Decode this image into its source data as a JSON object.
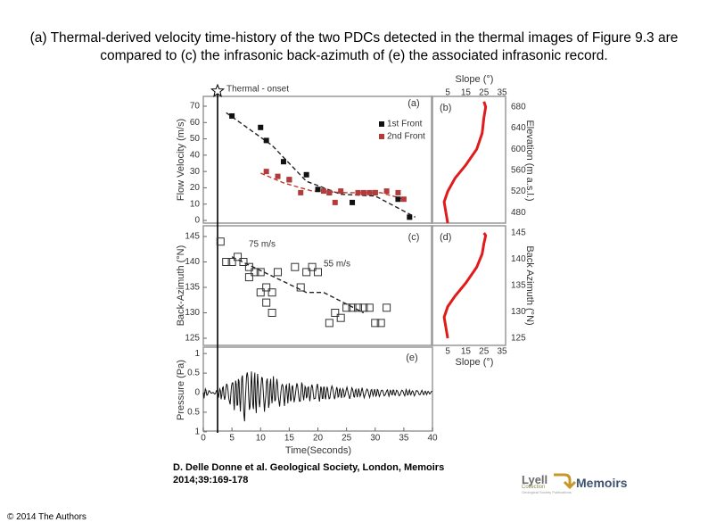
{
  "caption": {
    "text": "(a) Thermal-derived velocity time-history of the two PDCs detected in the thermal images of Figure 9.3 are compared to (c) the infrasonic back-azimuth of (e) the associated infrasonic record."
  },
  "citation": {
    "line1": "D. Delle Donne et al. Geological Society, London, Memoirs",
    "line2": "2014;39:169-178"
  },
  "copyright": "© 2014 The Authors",
  "logos": {
    "lyell_name": "Lyell",
    "lyell_sub": "Collection",
    "lyell_tag": "Geological Society Publications",
    "memoirs": "Memoirs",
    "lyell_color": "#6b6b6b",
    "arrow_color": "#c8962a",
    "memoirs_color": "#3d5370"
  },
  "chart_data": [
    {
      "panel": "(a)",
      "type": "scatter",
      "ylabel": "Flow Velocity (m/s)",
      "ylim": [
        0,
        70
      ],
      "yticks": [
        "0",
        "10",
        "20",
        "30",
        "40",
        "50",
        "60",
        "70"
      ],
      "xlim": [
        0,
        40
      ],
      "onset_label": "Thermal - onset",
      "legend": [
        "1st Front",
        "2nd Front"
      ],
      "series": [
        {
          "name": "1st Front",
          "color": "#111111",
          "x": [
            5,
            10,
            11,
            14,
            15,
            18,
            20,
            22,
            26,
            30,
            34,
            36
          ],
          "y": [
            64,
            57,
            49,
            36,
            25,
            28,
            19,
            17,
            11,
            17,
            13,
            2
          ]
        },
        {
          "name": "2nd Front",
          "color": "#b53a3a",
          "x": [
            11,
            13,
            15,
            17,
            21,
            22,
            23,
            24,
            27,
            28,
            29,
            30,
            32,
            34,
            35
          ],
          "y": [
            30,
            27,
            25,
            17,
            18,
            17,
            11,
            18,
            17,
            17,
            17,
            17,
            18,
            17,
            13
          ]
        }
      ],
      "fit_1st": {
        "x": [
          4,
          12,
          18,
          24,
          30,
          37
        ],
        "y": [
          66,
          46,
          24,
          16,
          15,
          2
        ]
      },
      "fit_2nd": {
        "x": [
          10,
          14,
          19,
          25,
          31,
          35
        ],
        "y": [
          29,
          23,
          18,
          17,
          17,
          13
        ]
      }
    },
    {
      "panel": "(b)",
      "type": "line",
      "xlabel": "Slope (°)",
      "xticks": [
        "5",
        "15",
        "25",
        "35"
      ],
      "xlim": [
        0,
        35
      ],
      "ylabel": "Elevation (m a.s.l.)",
      "yticks": [
        "480",
        "520",
        "560",
        "600",
        "640",
        "680"
      ],
      "ylim": [
        460,
        700
      ],
      "x": [
        5,
        4,
        3,
        5,
        9,
        15,
        21,
        24,
        25,
        26,
        25
      ],
      "y": [
        460,
        480,
        500,
        520,
        545,
        570,
        600,
        630,
        660,
        680,
        690
      ]
    },
    {
      "panel": "(c)",
      "type": "scatter",
      "ylabel": "Back-Azimuth (°N)",
      "ylim": [
        125,
        145
      ],
      "yticks": [
        "125",
        "130",
        "135",
        "140",
        "145"
      ],
      "xlim": [
        0,
        40
      ],
      "annotations": [
        "75 m/s",
        "55 m/s"
      ],
      "x": [
        3,
        4,
        5,
        6,
        7,
        8,
        8,
        9,
        10,
        10,
        11,
        11,
        12,
        12,
        13,
        16,
        17,
        18,
        19,
        20,
        22,
        23,
        24,
        25,
        26,
        27,
        28,
        29,
        30,
        31,
        32
      ],
      "y": [
        144,
        140,
        140,
        141,
        140,
        139,
        137,
        138,
        138,
        134,
        135,
        132,
        130,
        134,
        138,
        139,
        135,
        138,
        139,
        138,
        128,
        130,
        129,
        131,
        131,
        131,
        131,
        131,
        128,
        128,
        131
      ],
      "fit": {
        "x": [
          5,
          18,
          21,
          28
        ],
        "y": [
          141,
          134,
          134,
          130
        ]
      }
    },
    {
      "panel": "(d)",
      "type": "line",
      "ylabel": "Back Azimuth (°N)",
      "yticks": [
        "125",
        "130",
        "135",
        "140",
        "145"
      ],
      "ylim": [
        125,
        145
      ],
      "xlabel": "Slope (°)",
      "xticks": [
        "5",
        "15",
        "25",
        "35"
      ],
      "xlim": [
        0,
        35
      ],
      "x": [
        5,
        4,
        3,
        5,
        9,
        15,
        21,
        24,
        25,
        26,
        25
      ],
      "y": [
        125,
        127,
        129,
        131,
        133,
        135.5,
        138.5,
        141,
        143,
        144.5,
        145
      ]
    },
    {
      "panel": "(e)",
      "type": "line",
      "ylabel": "Pressure (Pa)",
      "yticks": [
        "1",
        "0.5",
        "0",
        "0.5",
        "1"
      ],
      "ylim": [
        -1,
        1
      ],
      "xlabel": "Time(Seconds)",
      "xticks": [
        "0",
        "5",
        "10",
        "15",
        "20",
        "25",
        "30",
        "35",
        "40"
      ],
      "xlim": [
        0,
        40
      ],
      "envelope": {
        "t": [
          2,
          4,
          6,
          7,
          8,
          10,
          13,
          17,
          22,
          27,
          32,
          38,
          40
        ],
        "a": [
          0.05,
          0.3,
          0.55,
          0.8,
          0.65,
          0.55,
          0.4,
          0.3,
          0.2,
          0.15,
          0.1,
          0.08,
          0.05
        ]
      }
    }
  ]
}
